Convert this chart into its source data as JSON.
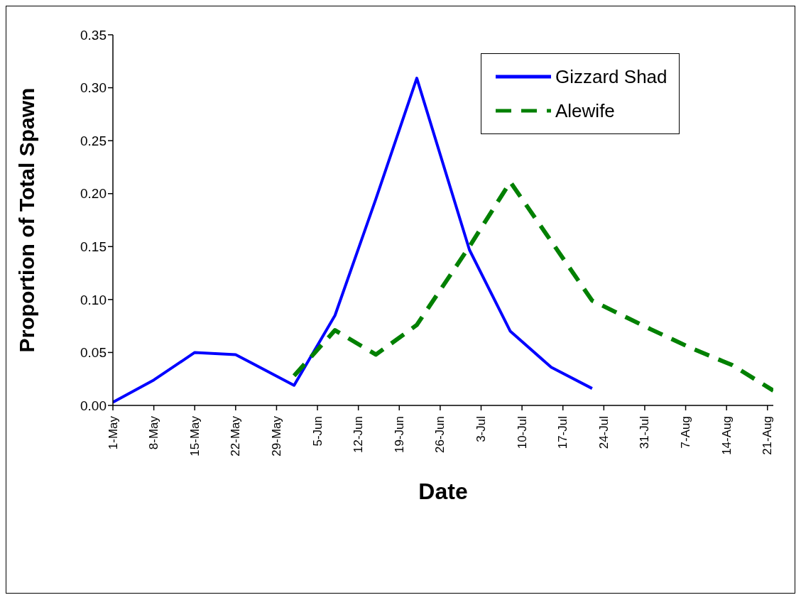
{
  "chart_data": {
    "type": "line",
    "xlabel": "Date",
    "ylabel": "Proportion of Total Spawn",
    "xlim": [
      "--05-01",
      "--08-22"
    ],
    "xticks": [
      {
        "value": "--05-01",
        "label": "1-May"
      },
      {
        "value": "--05-08",
        "label": "8-May"
      },
      {
        "value": "--05-15",
        "label": "15-May"
      },
      {
        "value": "--05-22",
        "label": "22-May"
      },
      {
        "value": "--05-29",
        "label": "29-May"
      },
      {
        "value": "--06-05",
        "label": "5-Jun"
      },
      {
        "value": "--06-12",
        "label": "12-Jun"
      },
      {
        "value": "--06-19",
        "label": "19-Jun"
      },
      {
        "value": "--06-26",
        "label": "26-Jun"
      },
      {
        "value": "--07-03",
        "label": "3-Jul"
      },
      {
        "value": "--07-10",
        "label": "10-Jul"
      },
      {
        "value": "--07-17",
        "label": "17-Jul"
      },
      {
        "value": "--07-24",
        "label": "24-Jul"
      },
      {
        "value": "--07-31",
        "label": "31-Jul"
      },
      {
        "value": "--08-07",
        "label": "7-Aug"
      },
      {
        "value": "--08-14",
        "label": "14-Aug"
      },
      {
        "value": "--08-21",
        "label": "21-Aug"
      }
    ],
    "ylim": [
      0,
      0.35
    ],
    "yticks": [
      {
        "value": 0,
        "label": "0.00"
      },
      {
        "value": 0.05,
        "label": "0.05"
      },
      {
        "value": 0.1,
        "label": "0.10"
      },
      {
        "value": 0.15,
        "label": "0.15"
      },
      {
        "value": 0.2,
        "label": "0.20"
      },
      {
        "value": 0.25,
        "label": "0.25"
      },
      {
        "value": 0.3,
        "label": "0.30"
      },
      {
        "value": 0.35,
        "label": "0.35"
      }
    ],
    "grid": false,
    "legend": "top right",
    "marker": "none",
    "series": [
      {
        "name": "Gizzard Shad",
        "color": "#0000ff",
        "line_style": "solid",
        "x": [
          "--05-01",
          "--05-08",
          "--05-15",
          "--05-22",
          "--06-01",
          "--06-08",
          "--06-15",
          "--06-22",
          "--07-01",
          "--07-08",
          "--07-15",
          "--07-22"
        ],
        "values": [
          0.003,
          0.024,
          0.05,
          0.048,
          0.019,
          0.085,
          0.195,
          0.309,
          0.147,
          0.07,
          0.036,
          0.016
        ]
      },
      {
        "name": "Alewife",
        "color": "#008000",
        "line_style": "dashed",
        "x": [
          "--06-01",
          "--06-08",
          "--06-15",
          "--06-22",
          "--07-01",
          "--07-08",
          "--07-22",
          "--08-01",
          "--08-08",
          "--08-15",
          "--08-22"
        ],
        "values": [
          0.028,
          0.071,
          0.048,
          0.076,
          0.15,
          0.211,
          0.099,
          0.072,
          0.054,
          0.038,
          0.014
        ]
      }
    ]
  }
}
